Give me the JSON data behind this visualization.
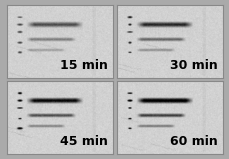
{
  "labels": [
    "15 min",
    "30 min",
    "45 min",
    "60 min"
  ],
  "grid_rows": 2,
  "grid_cols": 2,
  "background_color": "#c8c8c8",
  "border_color": "#888888",
  "label_fontsize": 9,
  "label_color": "black",
  "outer_bg": "#aaaaaa",
  "seeds": [
    42,
    43,
    44,
    45
  ],
  "band_intensity_scale": [
    1.0,
    1.3,
    1.6,
    1.8
  ]
}
